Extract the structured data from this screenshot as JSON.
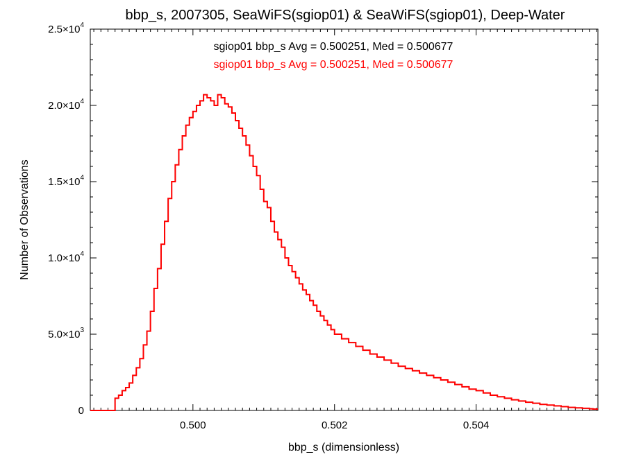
{
  "chart_data": {
    "type": "histogram",
    "title": "bbp_s, 2007305, SeaWiFS(sgiop01) & SeaWiFS(sgiop01), Deep-Water",
    "xlabel": "bbp_s (dimensionless)",
    "ylabel": "Number of Observations",
    "xlim": [
      0.49855,
      0.50572
    ],
    "ylim": [
      0,
      25000
    ],
    "x_ticks": [
      {
        "value": 0.5,
        "label": "0.500"
      },
      {
        "value": 0.502,
        "label": "0.502"
      },
      {
        "value": 0.504,
        "label": "0.504"
      }
    ],
    "y_ticks": [
      {
        "value": 0,
        "mantissa": "0",
        "exponent": ""
      },
      {
        "value": 5000,
        "mantissa": "5.0×10",
        "exponent": "3"
      },
      {
        "value": 10000,
        "mantissa": "1.0×10",
        "exponent": "4"
      },
      {
        "value": 15000,
        "mantissa": "1.5×10",
        "exponent": "4"
      },
      {
        "value": 20000,
        "mantissa": "2.0×10",
        "exponent": "4"
      },
      {
        "value": 25000,
        "mantissa": "2.5×10",
        "exponent": "4"
      }
    ],
    "grid": false,
    "legend_position": "top-center",
    "series": [
      {
        "name": "sgiop01 bbp_s Avg = 0.500251, Med = 0.500677",
        "color": "#000000",
        "x": [
          0.4989,
          0.49895,
          0.499,
          0.49905,
          0.4991,
          0.49915,
          0.4992,
          0.49925,
          0.4993,
          0.49935,
          0.4994,
          0.49945,
          0.4995,
          0.49955,
          0.4996,
          0.49965,
          0.4997,
          0.49975,
          0.4998,
          0.49985,
          0.4999,
          0.49995,
          0.5,
          0.50005,
          0.5001,
          0.50015,
          0.5002,
          0.50025,
          0.5003,
          0.50035,
          0.5004,
          0.50045,
          0.5005,
          0.50055,
          0.5006,
          0.50065,
          0.5007,
          0.50075,
          0.5008,
          0.50085,
          0.5009,
          0.50095,
          0.501,
          0.50105,
          0.5011,
          0.50115,
          0.5012,
          0.50125,
          0.5013,
          0.50135,
          0.5014,
          0.50145,
          0.5015,
          0.50155,
          0.5016,
          0.50165,
          0.5017,
          0.50175,
          0.5018,
          0.50185,
          0.5019,
          0.50195,
          0.502,
          0.5021,
          0.5022,
          0.5023,
          0.5024,
          0.5025,
          0.5026,
          0.5027,
          0.5028,
          0.5029,
          0.503,
          0.5031,
          0.5032,
          0.5033,
          0.5034,
          0.5035,
          0.5036,
          0.5037,
          0.5038,
          0.5039,
          0.504,
          0.5041,
          0.5042,
          0.5043,
          0.5044,
          0.5045,
          0.5046,
          0.5047,
          0.5048,
          0.5049,
          0.505,
          0.5051,
          0.5052,
          0.5053,
          0.5054,
          0.5055,
          0.5056,
          0.50565
        ],
        "values": [
          800,
          1000,
          1300,
          1500,
          1800,
          2300,
          2800,
          3400,
          4300,
          5200,
          6500,
          8000,
          9300,
          10900,
          12400,
          13900,
          15000,
          16100,
          17100,
          18000,
          18700,
          19200,
          19600,
          20000,
          20300,
          20700,
          20500,
          20300,
          20000,
          20700,
          20500,
          20100,
          19900,
          19500,
          19000,
          18500,
          18000,
          17400,
          16700,
          16000,
          15400,
          14500,
          13700,
          13300,
          12400,
          11700,
          11200,
          10700,
          10000,
          9500,
          9100,
          8700,
          8300,
          7900,
          7600,
          7200,
          6900,
          6500,
          6200,
          5900,
          5600,
          5300,
          5000,
          4700,
          4450,
          4200,
          3950,
          3700,
          3500,
          3300,
          3100,
          2900,
          2750,
          2600,
          2450,
          2300,
          2150,
          2000,
          1850,
          1700,
          1550,
          1400,
          1300,
          1150,
          1000,
          900,
          800,
          700,
          620,
          540,
          470,
          400,
          350,
          300,
          250,
          200,
          170,
          140,
          110,
          90
        ]
      },
      {
        "name": "sgiop01 bbp_s Avg = 0.500251, Med = 0.500677",
        "color": "#ff0000",
        "x": [
          0.4989,
          0.49895,
          0.499,
          0.49905,
          0.4991,
          0.49915,
          0.4992,
          0.49925,
          0.4993,
          0.49935,
          0.4994,
          0.49945,
          0.4995,
          0.49955,
          0.4996,
          0.49965,
          0.4997,
          0.49975,
          0.4998,
          0.49985,
          0.4999,
          0.49995,
          0.5,
          0.50005,
          0.5001,
          0.50015,
          0.5002,
          0.50025,
          0.5003,
          0.50035,
          0.5004,
          0.50045,
          0.5005,
          0.50055,
          0.5006,
          0.50065,
          0.5007,
          0.50075,
          0.5008,
          0.50085,
          0.5009,
          0.50095,
          0.501,
          0.50105,
          0.5011,
          0.50115,
          0.5012,
          0.50125,
          0.5013,
          0.50135,
          0.5014,
          0.50145,
          0.5015,
          0.50155,
          0.5016,
          0.50165,
          0.5017,
          0.50175,
          0.5018,
          0.50185,
          0.5019,
          0.50195,
          0.502,
          0.5021,
          0.5022,
          0.5023,
          0.5024,
          0.5025,
          0.5026,
          0.5027,
          0.5028,
          0.5029,
          0.503,
          0.5031,
          0.5032,
          0.5033,
          0.5034,
          0.5035,
          0.5036,
          0.5037,
          0.5038,
          0.5039,
          0.504,
          0.5041,
          0.5042,
          0.5043,
          0.5044,
          0.5045,
          0.5046,
          0.5047,
          0.5048,
          0.5049,
          0.505,
          0.5051,
          0.5052,
          0.5053,
          0.5054,
          0.5055,
          0.5056,
          0.50565
        ],
        "values": [
          800,
          1000,
          1300,
          1500,
          1800,
          2300,
          2800,
          3400,
          4300,
          5200,
          6500,
          8000,
          9300,
          10900,
          12400,
          13900,
          15000,
          16100,
          17100,
          18000,
          18700,
          19200,
          19600,
          20000,
          20300,
          20700,
          20500,
          20300,
          20000,
          20700,
          20500,
          20100,
          19900,
          19500,
          19000,
          18500,
          18000,
          17400,
          16700,
          16000,
          15400,
          14500,
          13700,
          13300,
          12400,
          11700,
          11200,
          10700,
          10000,
          9500,
          9100,
          8700,
          8300,
          7900,
          7600,
          7200,
          6900,
          6500,
          6200,
          5900,
          5600,
          5300,
          5000,
          4700,
          4450,
          4200,
          3950,
          3700,
          3500,
          3300,
          3100,
          2900,
          2750,
          2600,
          2450,
          2300,
          2150,
          2000,
          1850,
          1700,
          1550,
          1400,
          1300,
          1150,
          1000,
          900,
          800,
          700,
          620,
          540,
          470,
          400,
          350,
          300,
          250,
          200,
          170,
          140,
          110,
          90
        ]
      }
    ]
  }
}
